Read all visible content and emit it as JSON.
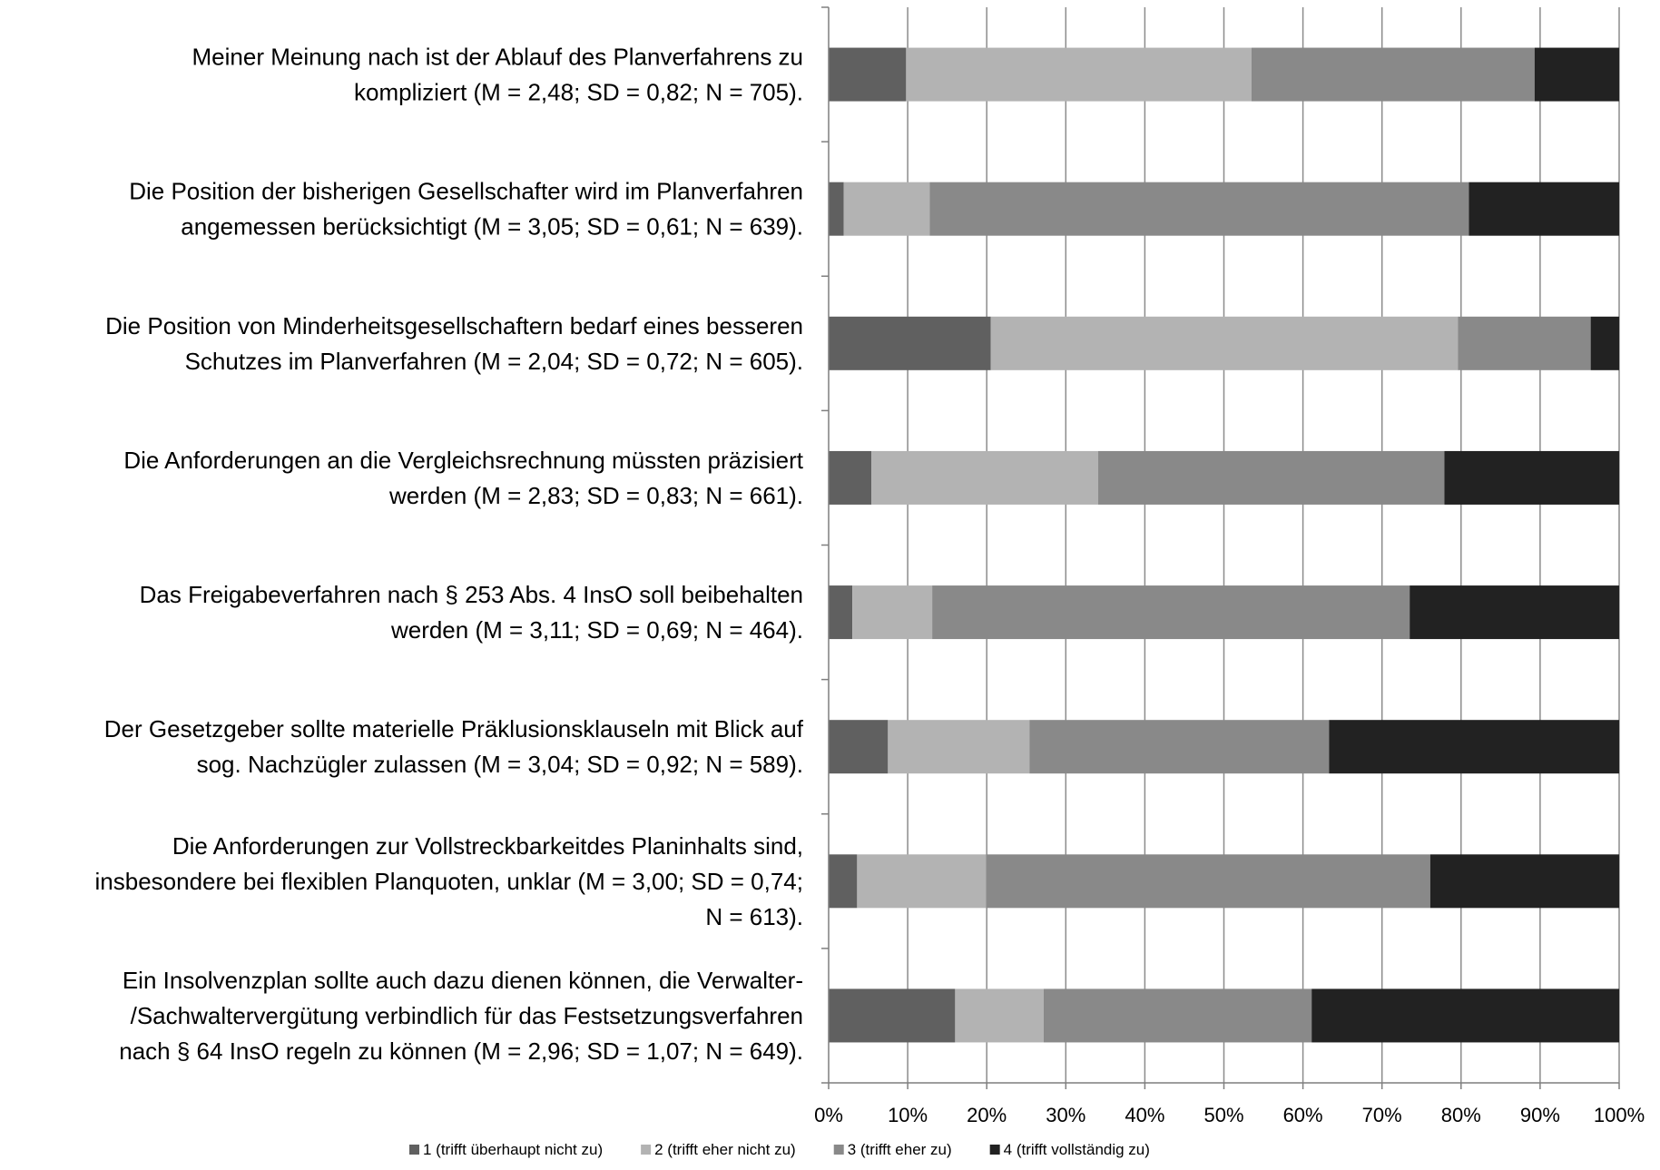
{
  "chart_data": {
    "type": "bar",
    "orientation": "horizontal",
    "stacked": "percent",
    "title": "",
    "xlabel": "",
    "ylabel": "",
    "xlim": [
      0,
      100
    ],
    "grid": true,
    "legend_position": "bottom",
    "x_ticks": [
      "0%",
      "10%",
      "20%",
      "30%",
      "40%",
      "50%",
      "60%",
      "70%",
      "80%",
      "90%",
      "100%"
    ],
    "categories": [
      [
        "Meiner Meinung nach ist der Ablauf des Planverfahrens zu",
        "kompliziert (M = 2,48; SD = 0,82; N = 705)."
      ],
      [
        "Die Position der  bisherigen Gesellschafter wird im Planverfahren",
        "angemessen berücksichtigt (M = 3,05; SD = 0,61; N = 639)."
      ],
      [
        "Die Position von Minderheitsgesellschaftern bedarf eines besseren",
        "Schutzes im Planverfahren (M = 2,04; SD = 0,72; N = 605)."
      ],
      [
        "Die Anforderungen an die Vergleichsrechnung müssten präzisiert",
        "werden (M = 2,83; SD = 0,83; N = 661)."
      ],
      [
        "Das Freigabeverfahren nach § 253 Abs. 4 InsO soll beibehalten",
        "werden (M = 3,11; SD = 0,69; N = 464)."
      ],
      [
        "Der Gesetzgeber sollte materielle Präklusionsklauseln mit Blick auf",
        "sog. Nachzügler zulassen (M = 3,04; SD = 0,92; N = 589)."
      ],
      [
        "Die Anforderungen zur Vollstreckbarkeitdes Planinhalts sind,",
        "insbesondere bei flexiblen Planquoten, unklar (M = 3,00; SD = 0,74;",
        "N = 613)."
      ],
      [
        "Ein Insolvenzplan sollte auch dazu dienen können, die Verwalter-",
        "/Sachwaltervergütung verbindlich für das Festsetzungsverfahren",
        "nach § 64 InsO regeln zu können (M = 2,96; SD = 1,07; N = 649)."
      ]
    ],
    "series": [
      {
        "name": "1 (trifft überhaupt nicht zu)",
        "color": "#606060",
        "values": [
          9.8,
          1.9,
          20.5,
          5.4,
          3.0,
          7.5,
          3.6,
          16.0
        ]
      },
      {
        "name": "2 (trifft eher nicht zu)",
        "color": "#b3b3b3",
        "values": [
          43.7,
          10.9,
          59.1,
          28.7,
          10.1,
          17.9,
          16.3,
          11.2
        ]
      },
      {
        "name": "3 (trifft eher zu)",
        "color": "#898989",
        "values": [
          35.8,
          68.2,
          16.8,
          43.8,
          60.4,
          37.9,
          56.2,
          33.9
        ]
      },
      {
        "name": "4 (trifft vollständig zu)",
        "color": "#222222",
        "values": [
          10.7,
          19.0,
          3.6,
          22.1,
          26.5,
          36.7,
          23.9,
          38.9
        ]
      }
    ]
  }
}
